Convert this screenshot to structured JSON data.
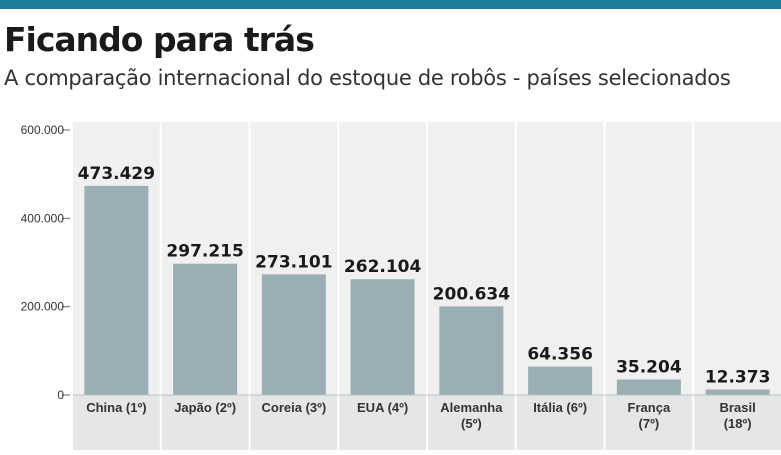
{
  "header": {
    "title": "Ficando para trás",
    "subtitle": "A comparação internacional do estoque de robôs - países selecionados"
  },
  "colors": {
    "accent_bar": "#1f7f9a",
    "column_bg": "#f0f0f0",
    "label_bg": "#e4e6e8",
    "bar": "#9aaeb3"
  },
  "chart_data": {
    "type": "bar",
    "categories": [
      [
        "China (1º)"
      ],
      [
        "Japão (2º)"
      ],
      [
        "Coreia (3º)"
      ],
      [
        "EUA (4º)"
      ],
      [
        "Alemanha",
        "(5º)"
      ],
      [
        "Itália (6º)"
      ],
      [
        "França",
        "(7º)"
      ],
      [
        "Brasil",
        "(18º)"
      ]
    ],
    "values": [
      473429,
      297215,
      273101,
      262104,
      200634,
      64356,
      35204,
      12373
    ],
    "value_labels": [
      "473.429",
      "297.215",
      "273.101",
      "262.104",
      "200.634",
      "64.356",
      "35.204",
      "12.373"
    ],
    "yticks": [
      0,
      200000,
      400000,
      600000
    ],
    "ytick_labels": [
      "0",
      "200.000",
      "400.000",
      "600.000"
    ],
    "ylim": [
      0,
      600000
    ],
    "grid": false
  }
}
